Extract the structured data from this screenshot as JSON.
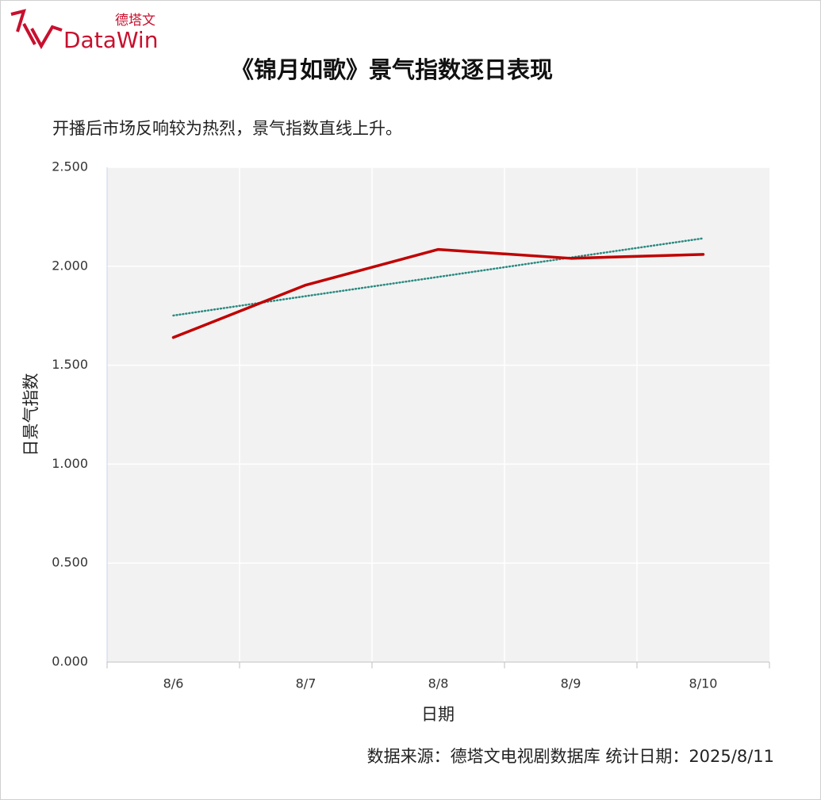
{
  "logo": {
    "brand": "DataWin",
    "brand_cn": "德塔文"
  },
  "chart_data": {
    "type": "line",
    "title": "《锦月如歌》景气指数逐日表现",
    "subtitle": "开播后市场反响较为热烈，景气指数直线上升。",
    "x_label": "日期",
    "y_label": "日景气指数",
    "categories": [
      "8/6",
      "8/7",
      "8/8",
      "8/9",
      "8/10"
    ],
    "series": [
      {
        "color": "#c00000",
        "values": [
          1.64,
          1.905,
          2.085,
          2.04,
          2.06
        ]
      }
    ],
    "trendline": {
      "color": "#2a8a80",
      "values": [
        1.751,
        1.849,
        1.946,
        2.044,
        2.141
      ]
    },
    "ylim": [
      0,
      2.5
    ],
    "yticks": [
      {
        "value": 0,
        "label": "0.000"
      },
      {
        "value": 0.5,
        "label": "0.500"
      },
      {
        "value": 1,
        "label": "1.000"
      },
      {
        "value": 1.5,
        "label": "1.500"
      },
      {
        "value": 2,
        "label": "2.000"
      },
      {
        "value": 2.5,
        "label": "2.500"
      }
    ],
    "grid": true,
    "source": "数据来源：德塔文电视剧数据库   统计日期：2025/8/11"
  }
}
